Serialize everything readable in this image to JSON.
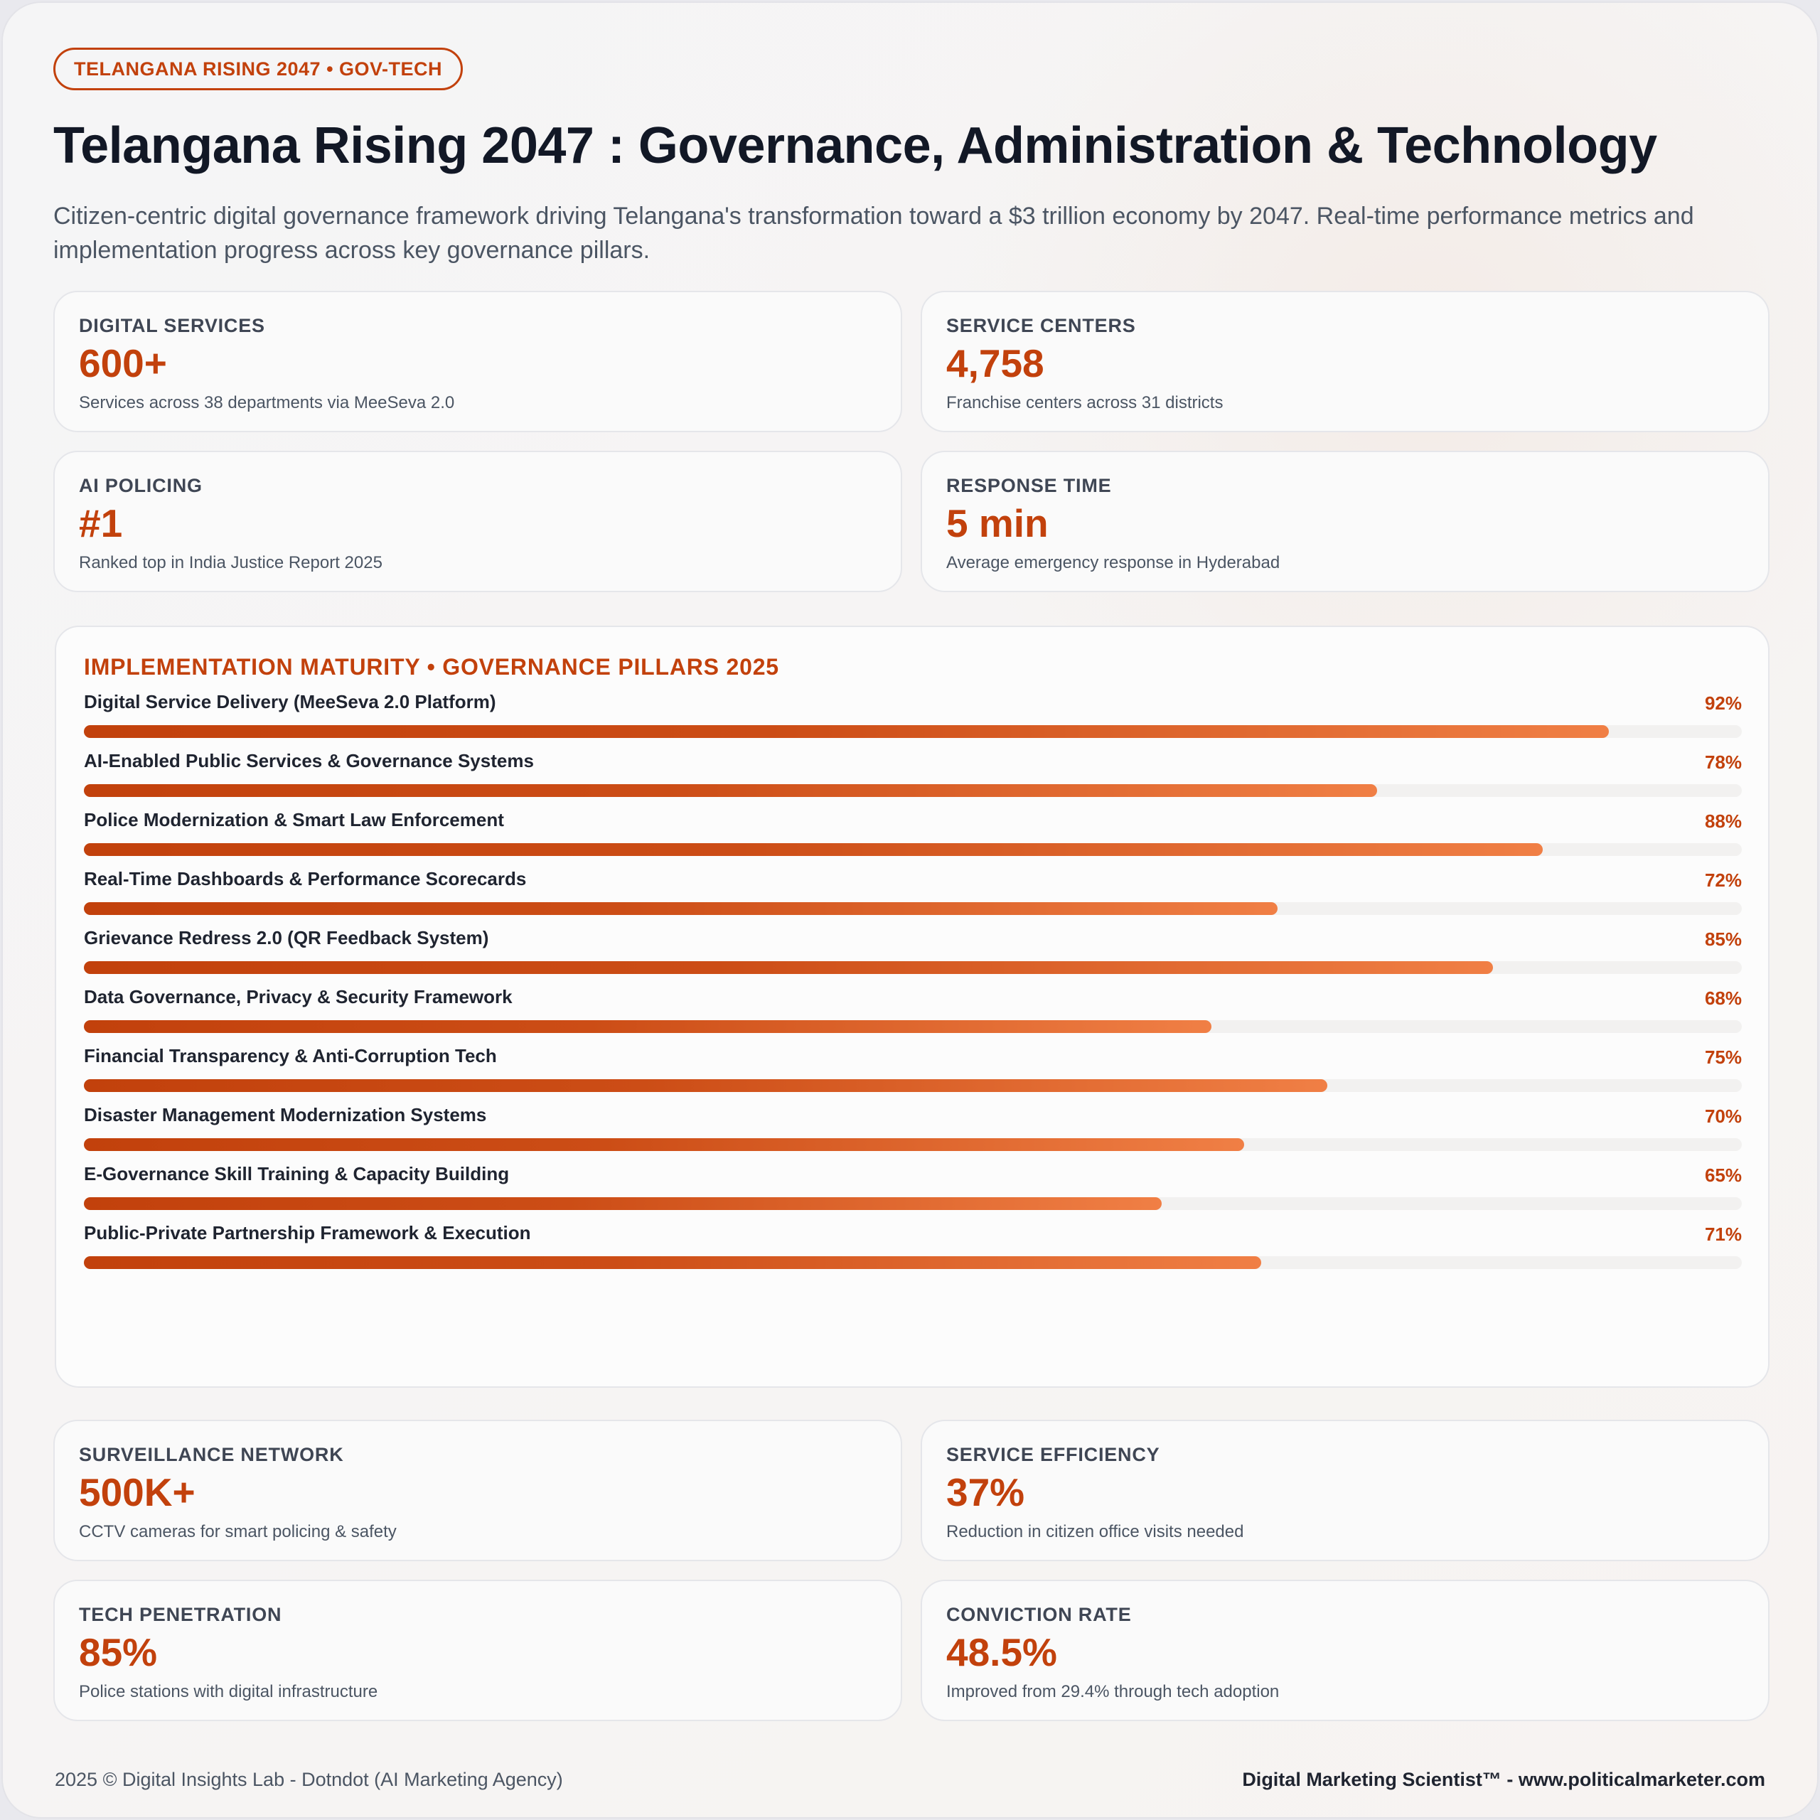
{
  "badge": "TELANGANA RISING 2047 • GOV-TECH",
  "title": "Telangana Rising 2047 : Governance, Administration & Technology",
  "subtitle": "Citizen-centric digital governance framework driving Telangana's transformation toward a $3 trillion economy by 2047. Real-time performance metrics and implementation progress across key governance pillars.",
  "top_stats": [
    {
      "label": "DIGITAL SERVICES",
      "value": "600+",
      "desc": "Services across 38 departments via MeeSeva 2.0"
    },
    {
      "label": "SERVICE CENTERS",
      "value": "4,758",
      "desc": "Franchise centers across 31 districts"
    },
    {
      "label": "AI POLICING",
      "value": "#1",
      "desc": "Ranked top in India Justice Report 2025"
    },
    {
      "label": "RESPONSE TIME",
      "value": "5 min",
      "desc": "Average emergency response in Hyderabad"
    }
  ],
  "chart_data": {
    "type": "bar",
    "title": "IMPLEMENTATION MATURITY • GOVERNANCE PILLARS 2025",
    "orientation": "horizontal",
    "ylim": [
      0,
      100
    ],
    "categories": [
      "Digital Service Delivery (MeeSeva 2.0 Platform)",
      "AI-Enabled Public Services & Governance Systems",
      "Police Modernization & Smart Law Enforcement",
      "Real-Time Dashboards & Performance Scorecards",
      "Grievance Redress 2.0 (QR Feedback System)",
      "Data Governance, Privacy & Security Framework",
      "Financial Transparency & Anti-Corruption Tech",
      "Disaster Management Modernization Systems",
      "E-Governance Skill Training & Capacity Building",
      "Public-Private Partnership Framework & Execution"
    ],
    "values": [
      92,
      78,
      88,
      72,
      85,
      68,
      75,
      70,
      65,
      71
    ],
    "labels": [
      "92%",
      "78%",
      "88%",
      "72%",
      "85%",
      "68%",
      "75%",
      "70%",
      "65%",
      "71%"
    ],
    "colors": {
      "start": "#c2410c",
      "end": "#f07f45",
      "track": "#f2f1f0"
    }
  },
  "bottom_stats": [
    {
      "label": "SURVEILLANCE NETWORK",
      "value": "500K+",
      "desc": "CCTV cameras for smart policing & safety"
    },
    {
      "label": "SERVICE EFFICIENCY",
      "value": "37%",
      "desc": "Reduction in citizen office visits needed"
    },
    {
      "label": "TECH PENETRATION",
      "value": "85%",
      "desc": "Police stations with digital infrastructure"
    },
    {
      "label": "CONVICTION RATE",
      "value": "48.5%",
      "desc": "Improved from 29.4% through tech adoption"
    }
  ],
  "footer": {
    "left": "2025 © Digital Insights Lab - Dotndot (AI Marketing Agency)",
    "right": "Digital Marketing Scientist™ - www.politicalmarketer.com"
  },
  "accent": "#c2410c"
}
